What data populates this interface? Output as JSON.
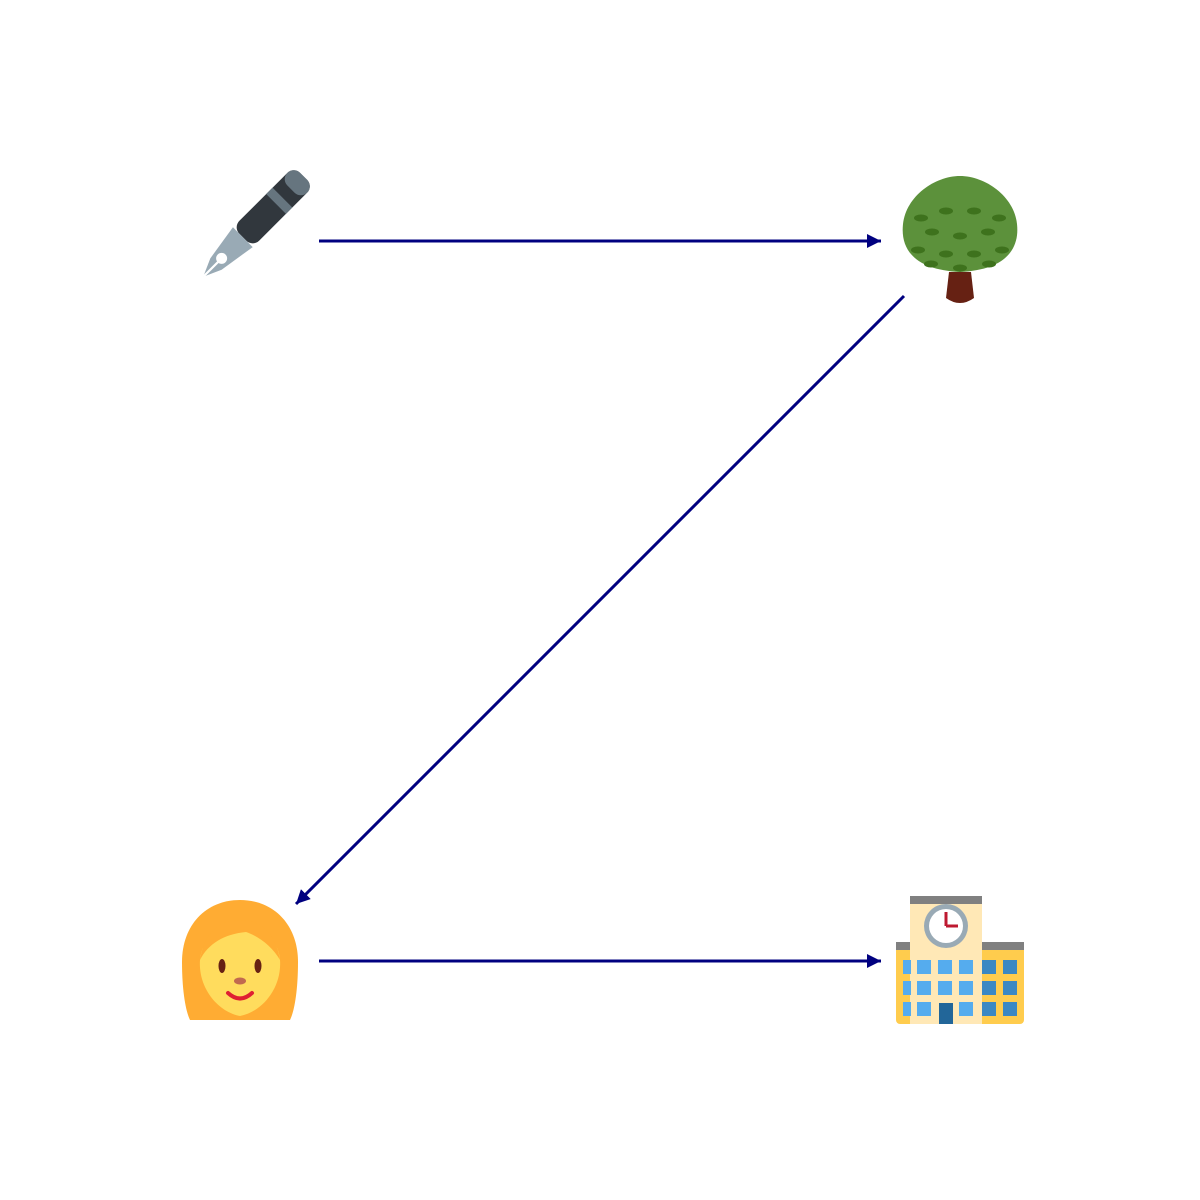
{
  "diagram": {
    "edge_color": "#000080",
    "nodes": [
      {
        "id": "pen",
        "icon": "fountain-pen-icon"
      },
      {
        "id": "tree",
        "icon": "deciduous-tree-icon"
      },
      {
        "id": "woman",
        "icon": "woman-icon"
      },
      {
        "id": "school",
        "icon": "school-building-icon"
      }
    ],
    "edges": [
      {
        "from": "pen",
        "to": "tree"
      },
      {
        "from": "tree",
        "to": "woman"
      },
      {
        "from": "woman",
        "to": "school"
      }
    ]
  }
}
